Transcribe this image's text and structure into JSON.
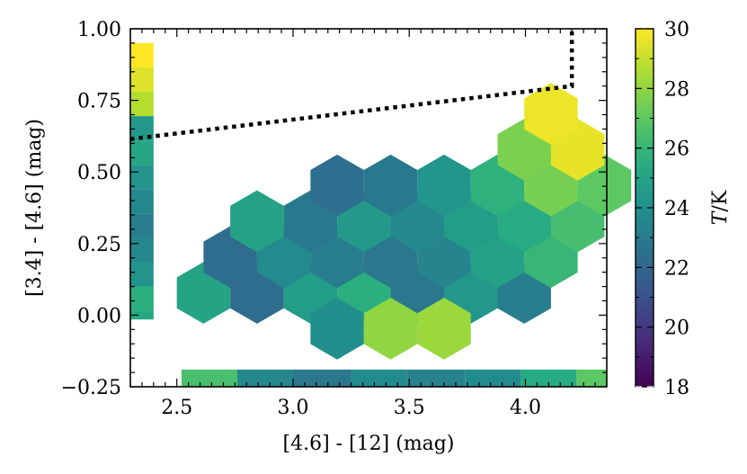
{
  "chart_data": {
    "type": "hexbin",
    "xlabel": "[4.6] - [12] (mag)",
    "ylabel": "[3.4] - [4.6] (mag)",
    "xlim": [
      2.3,
      4.35
    ],
    "ylim": [
      -0.25,
      1.0
    ],
    "xticks": [
      2.5,
      3.0,
      3.5,
      4.0
    ],
    "xtick_labels": [
      "2.5",
      "3.0",
      "3.5",
      "4.0"
    ],
    "yticks": [
      -0.25,
      0.0,
      0.25,
      0.5,
      0.75,
      1.0
    ],
    "ytick_labels": [
      "−0.25",
      "0.00",
      "0.25",
      "0.50",
      "0.75",
      "1.00"
    ],
    "colorbar": {
      "label_italic": "T",
      "label_rest": "/K",
      "range": [
        18,
        30
      ],
      "ticks": [
        18,
        20,
        22,
        24,
        26,
        28,
        30
      ],
      "tick_labels": [
        "18",
        "20",
        "22",
        "24",
        "26",
        "28",
        "30"
      ],
      "colormap": "viridis"
    },
    "hexbins": [
      {
        "x": 2.615,
        "y": 0.078,
        "T": 25.0
      },
      {
        "x": 2.845,
        "y": 0.078,
        "T": 22.3
      },
      {
        "x": 3.075,
        "y": 0.078,
        "T": 24.6
      },
      {
        "x": 3.305,
        "y": 0.078,
        "T": 25.6
      },
      {
        "x": 3.535,
        "y": 0.078,
        "T": 22.8
      },
      {
        "x": 3.765,
        "y": 0.078,
        "T": 24.4
      },
      {
        "x": 3.995,
        "y": 0.078,
        "T": 23.1
      },
      {
        "x": 2.73,
        "y": 0.203,
        "T": 22.3
      },
      {
        "x": 2.96,
        "y": 0.203,
        "T": 23.7
      },
      {
        "x": 3.19,
        "y": 0.203,
        "T": 23.1
      },
      {
        "x": 3.42,
        "y": 0.203,
        "T": 22.8
      },
      {
        "x": 3.65,
        "y": 0.203,
        "T": 23.4
      },
      {
        "x": 3.88,
        "y": 0.203,
        "T": 24.9
      },
      {
        "x": 4.11,
        "y": 0.203,
        "T": 26.0
      },
      {
        "x": 2.845,
        "y": 0.328,
        "T": 24.9
      },
      {
        "x": 3.075,
        "y": 0.328,
        "T": 22.9
      },
      {
        "x": 3.305,
        "y": 0.328,
        "T": 24.5
      },
      {
        "x": 3.535,
        "y": 0.328,
        "T": 23.6
      },
      {
        "x": 3.765,
        "y": 0.328,
        "T": 24.6
      },
      {
        "x": 3.995,
        "y": 0.328,
        "T": 25.4
      },
      {
        "x": 4.225,
        "y": 0.328,
        "T": 26.4
      },
      {
        "x": 3.19,
        "y": 0.453,
        "T": 22.4
      },
      {
        "x": 3.42,
        "y": 0.453,
        "T": 22.9
      },
      {
        "x": 3.65,
        "y": 0.453,
        "T": 24.3
      },
      {
        "x": 3.88,
        "y": 0.453,
        "T": 25.7
      },
      {
        "x": 4.11,
        "y": 0.453,
        "T": 27.5
      },
      {
        "x": 4.34,
        "y": 0.453,
        "T": 27.0
      },
      {
        "x": 3.995,
        "y": 0.578,
        "T": 27.6
      },
      {
        "x": 4.225,
        "y": 0.578,
        "T": 29.6
      },
      {
        "x": 4.11,
        "y": 0.703,
        "T": 29.7
      },
      {
        "x": 3.19,
        "y": -0.047,
        "T": 24.0
      },
      {
        "x": 3.42,
        "y": -0.047,
        "T": 28.0
      },
      {
        "x": 3.65,
        "y": -0.047,
        "T": 28.2
      }
    ],
    "x_marginal": [
      {
        "x0": 2.52,
        "x1": 2.76,
        "T": 26.5
      },
      {
        "x0": 2.76,
        "x1": 3.0,
        "T": 23.6
      },
      {
        "x0": 3.0,
        "x1": 3.25,
        "T": 22.8
      },
      {
        "x0": 3.25,
        "x1": 3.49,
        "T": 23.8
      },
      {
        "x0": 3.49,
        "x1": 3.74,
        "T": 23.3
      },
      {
        "x0": 3.74,
        "x1": 3.98,
        "T": 23.8
      },
      {
        "x0": 3.98,
        "x1": 4.22,
        "T": 25.4
      },
      {
        "x0": 4.22,
        "x1": 4.35,
        "T": 27.0
      }
    ],
    "y_marginal": [
      {
        "y0": 0.865,
        "y1": 0.95,
        "T": 30.0
      },
      {
        "y0": 0.78,
        "y1": 0.865,
        "T": 29.4
      },
      {
        "y0": 0.695,
        "y1": 0.78,
        "T": 28.7
      },
      {
        "y0": 0.61,
        "y1": 0.695,
        "T": 24.5
      },
      {
        "y0": 0.525,
        "y1": 0.61,
        "T": 25.1
      },
      {
        "y0": 0.44,
        "y1": 0.525,
        "T": 24.2
      },
      {
        "y0": 0.355,
        "y1": 0.44,
        "T": 23.6
      },
      {
        "y0": 0.27,
        "y1": 0.355,
        "T": 23.1
      },
      {
        "y0": 0.185,
        "y1": 0.27,
        "T": 23.6
      },
      {
        "y0": 0.1,
        "y1": 0.185,
        "T": 24.2
      },
      {
        "y0": 0.015,
        "y1": 0.1,
        "T": 25.6
      },
      {
        "y0": -0.015,
        "y1": 0.015,
        "T": 25.3
      }
    ],
    "boundary_line": {
      "style": "dotted",
      "points": [
        [
          2.3,
          0.615
        ],
        [
          4.2,
          0.8
        ],
        [
          4.2,
          1.0
        ]
      ]
    }
  }
}
